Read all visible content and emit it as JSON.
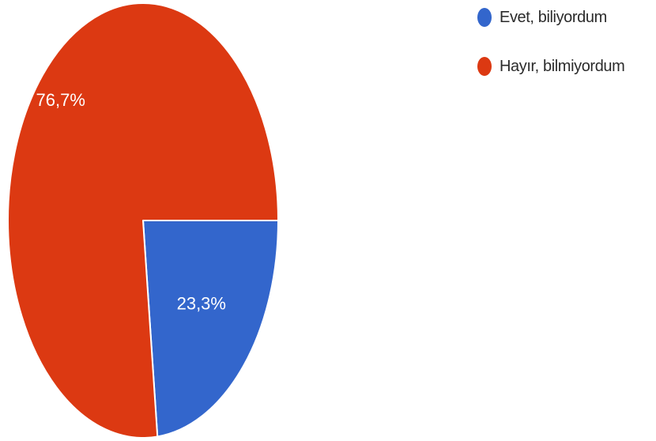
{
  "chart_data": {
    "type": "pie",
    "title": "",
    "start_angle_deg": 0,
    "direction": "clockwise",
    "legend_position": "top-right",
    "slices": [
      {
        "label": "Evet, biliyordum",
        "value": 23.3,
        "display": "23,3%",
        "color": "#3366cc"
      },
      {
        "label": "Hayır, bilmiyordum",
        "value": 76.7,
        "display": "76,7%",
        "color": "#dc3912"
      }
    ]
  }
}
